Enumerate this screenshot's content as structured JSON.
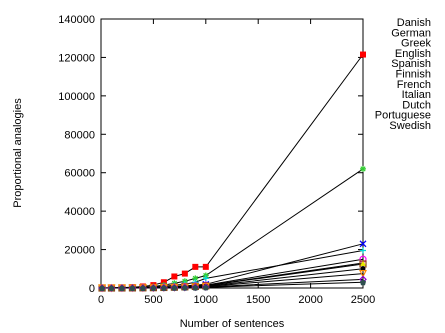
{
  "chart_data": {
    "type": "line",
    "title": "",
    "xlabel": "Number of sentences",
    "ylabel": "Proportional analogies",
    "xlim": [
      0,
      2500
    ],
    "ylim": [
      0,
      140000
    ],
    "x_ticks": [
      "0",
      "500",
      "1000",
      "1500",
      "2000",
      "2500"
    ],
    "y_ticks": [
      "0",
      "20000",
      "40000",
      "60000",
      "80000",
      "100000",
      "120000",
      "140000"
    ],
    "grid": false,
    "legend_position": "outside-right",
    "x": [
      10,
      100,
      200,
      300,
      400,
      500,
      600,
      700,
      800,
      900,
      1000,
      2500
    ],
    "series": [
      {
        "name": "Danish",
        "color": "#ff0000",
        "marker": "square",
        "values": [
          0,
          100,
          200,
          400,
          800,
          1500,
          3000,
          6000,
          7500,
          11000,
          11000,
          121500
        ]
      },
      {
        "name": "German",
        "color": "#33cc33",
        "marker": "star",
        "values": [
          0,
          50,
          120,
          250,
          450,
          800,
          1500,
          2500,
          3500,
          5000,
          6500,
          62000
        ]
      },
      {
        "name": "Greek",
        "color": "#0000ff",
        "marker": "x",
        "values": [
          0,
          20,
          50,
          100,
          180,
          300,
          500,
          800,
          1100,
          1500,
          1900,
          23000
        ]
      },
      {
        "name": "English",
        "color": "#00d6d6",
        "marker": "cross",
        "values": [
          0,
          30,
          80,
          160,
          300,
          500,
          900,
          1400,
          2000,
          3000,
          5000,
          19500
        ]
      },
      {
        "name": "Spanish",
        "color": "#ff00ff",
        "marker": "circle",
        "values": [
          0,
          15,
          40,
          80,
          140,
          230,
          380,
          600,
          850,
          1150,
          1500,
          15000
        ]
      },
      {
        "name": "Finnish",
        "color": "#e6e600",
        "marker": "triangle",
        "values": [
          0,
          15,
          35,
          70,
          120,
          200,
          320,
          500,
          700,
          950,
          1250,
          13000
        ]
      },
      {
        "name": "French",
        "color": "#8b4513",
        "marker": "square-open",
        "values": [
          0,
          12,
          30,
          60,
          100,
          170,
          280,
          430,
          600,
          820,
          1100,
          12500
        ]
      },
      {
        "name": "Italian",
        "color": "#000000",
        "marker": "dot",
        "values": [
          0,
          10,
          25,
          50,
          85,
          140,
          230,
          350,
          500,
          680,
          900,
          10000
        ]
      },
      {
        "name": "Dutch",
        "color": "#ff8c00",
        "marker": "triangle-down",
        "values": [
          0,
          8,
          20,
          40,
          70,
          115,
          190,
          290,
          410,
          560,
          750,
          7500
        ]
      },
      {
        "name": "Portuguese",
        "color": "#9400d3",
        "marker": "diamond",
        "values": [
          0,
          5,
          12,
          25,
          45,
          75,
          120,
          190,
          270,
          370,
          500,
          4500
        ]
      },
      {
        "name": "Swedish",
        "color": "#2f4f4f",
        "marker": "pentagon",
        "values": [
          0,
          3,
          8,
          16,
          28,
          45,
          75,
          115,
          165,
          225,
          300,
          3000
        ]
      }
    ]
  }
}
